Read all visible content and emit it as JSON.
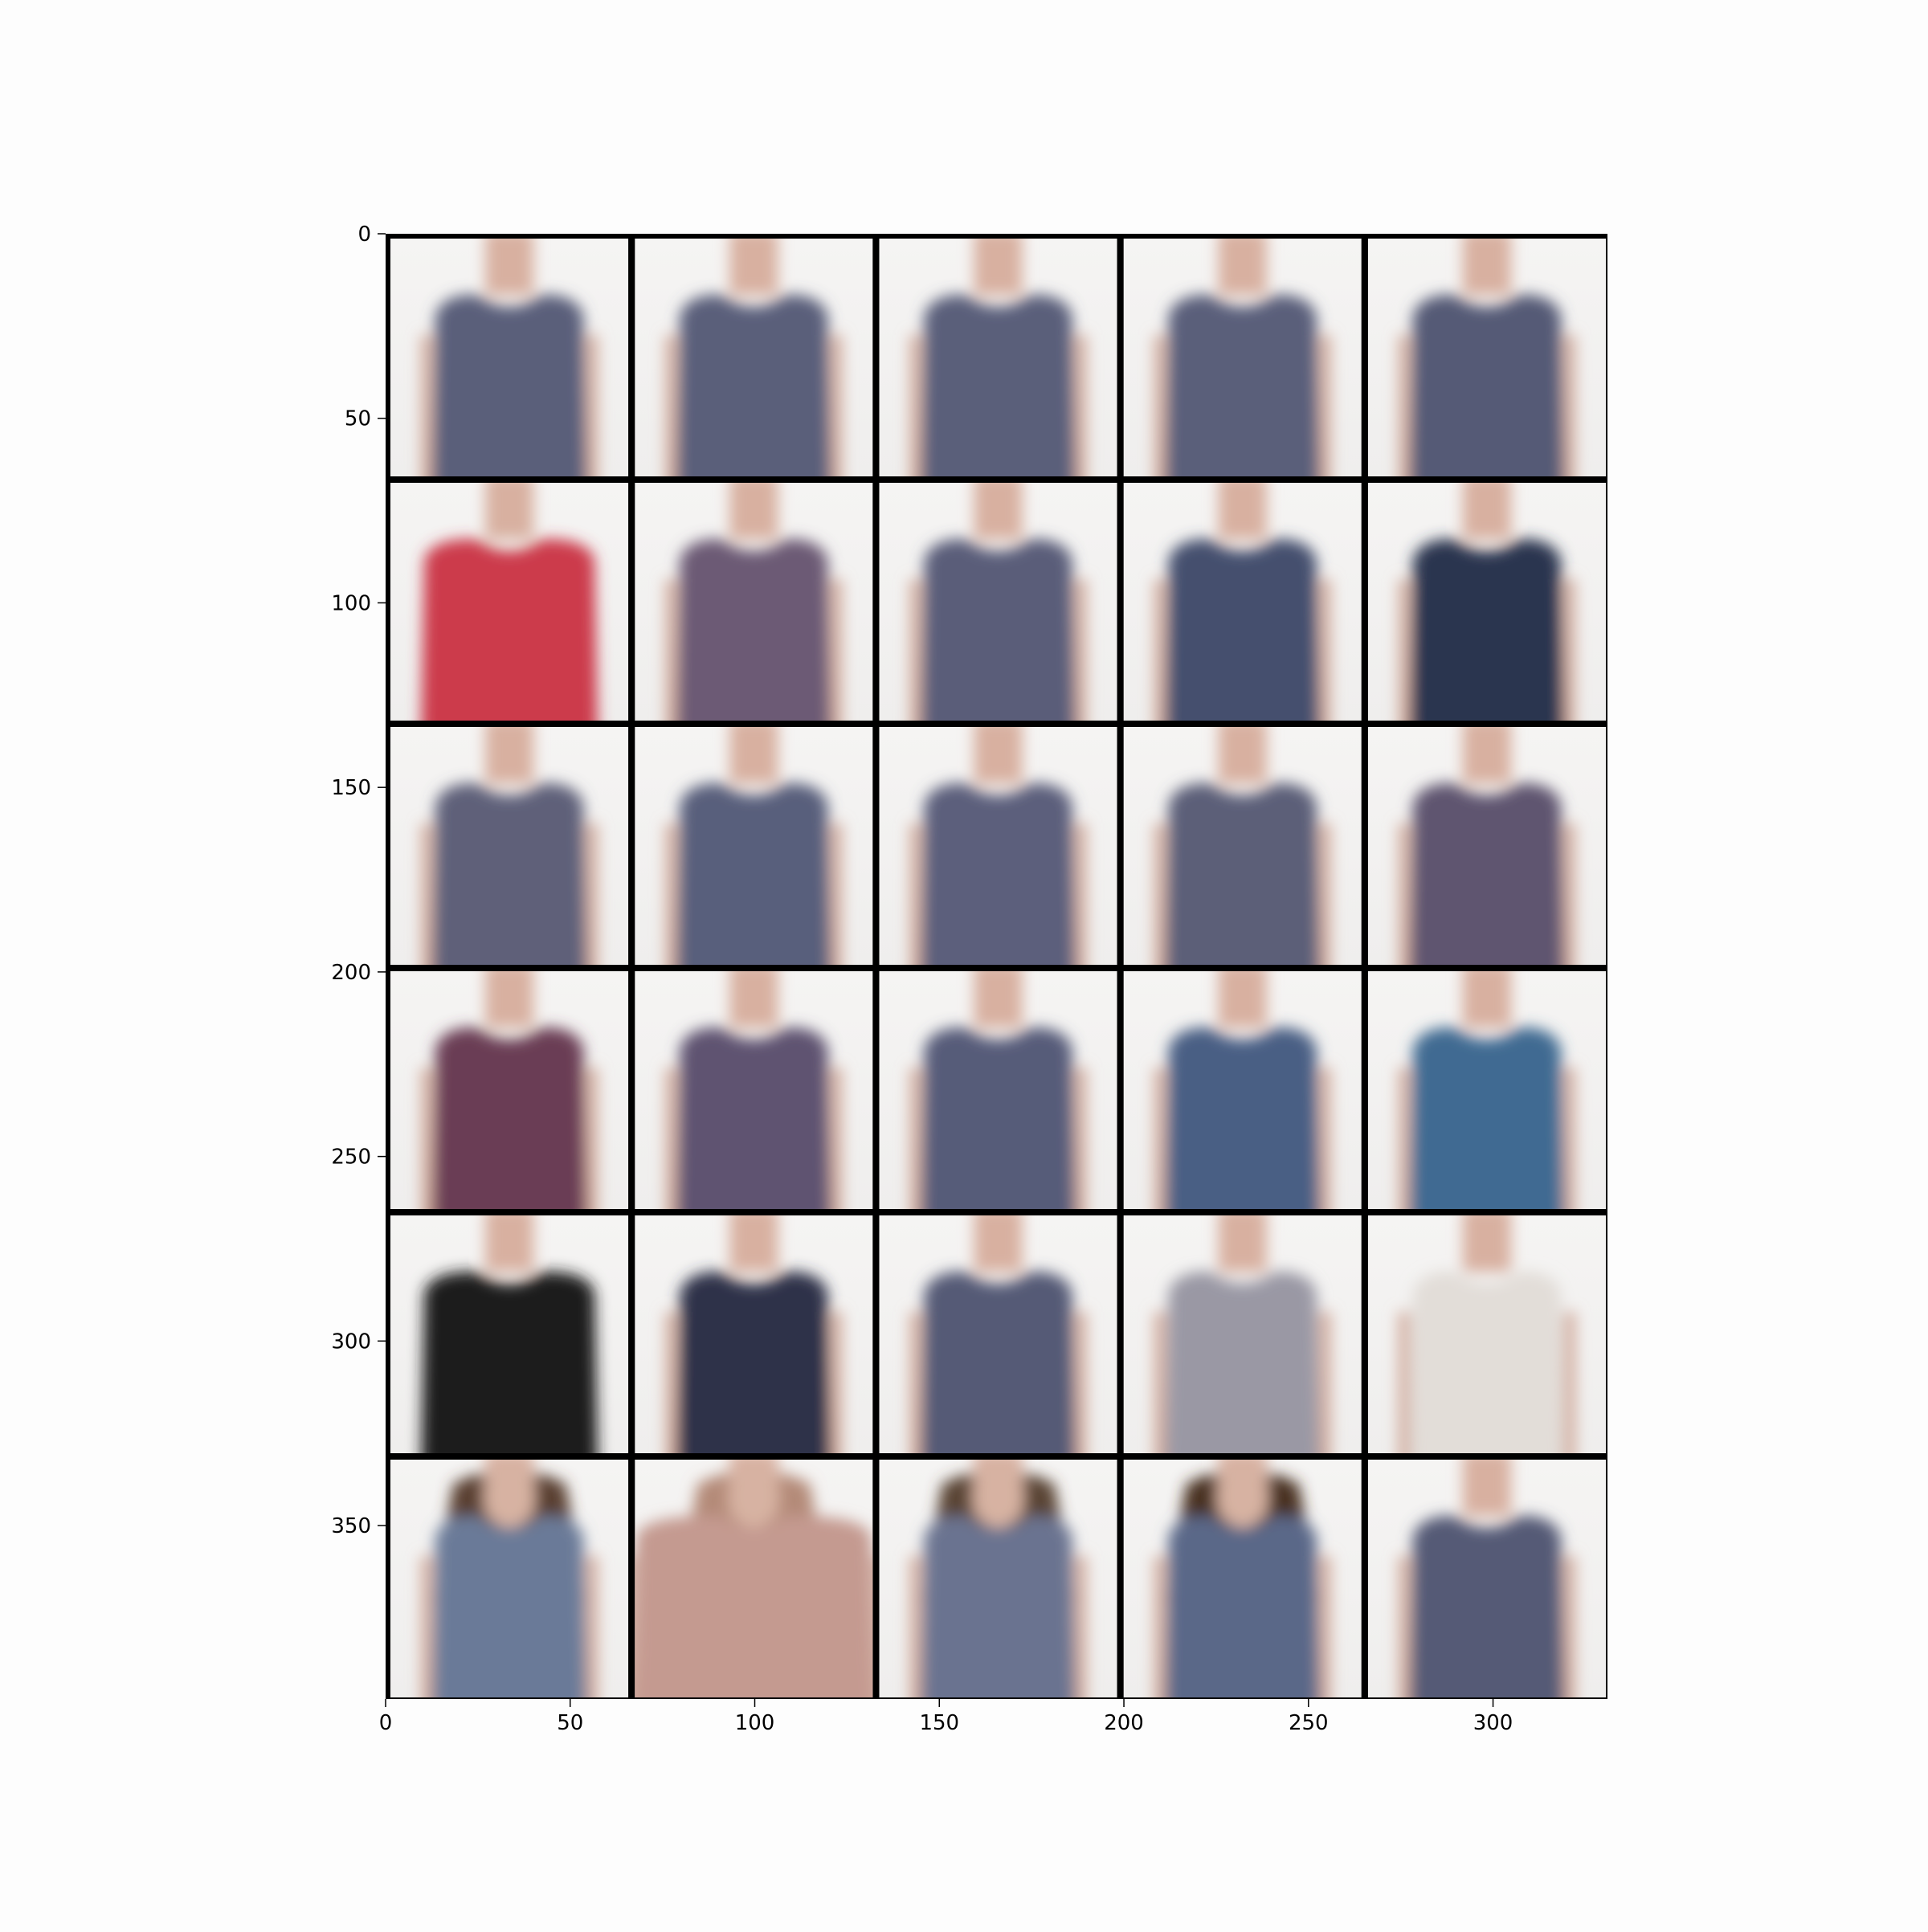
{
  "figure": {
    "background": "#fdfdfd",
    "frame_color": "#000000"
  },
  "image_grid": {
    "rows": 6,
    "cols": 5,
    "cells": [
      [
        {
          "style": "sleeveless",
          "shirt": "#5a5f7a",
          "hair": false
        },
        {
          "style": "sleeveless",
          "shirt": "#5a5f7a",
          "hair": false
        },
        {
          "style": "sleeveless",
          "shirt": "#5a5f7a",
          "hair": false
        },
        {
          "style": "sleeveless",
          "shirt": "#5a5e7a",
          "hair": false
        },
        {
          "style": "sleeveless",
          "shirt": "#555a76",
          "hair": false
        }
      ],
      [
        {
          "style": "sleeved",
          "shirt": "#cc3a4c",
          "hair": false
        },
        {
          "style": "sleeveless",
          "shirt": "#6c5a74",
          "hair": false
        },
        {
          "style": "sleeveless",
          "shirt": "#5a5d79",
          "hair": false
        },
        {
          "style": "sleeveless",
          "shirt": "#44506e",
          "hair": false
        },
        {
          "style": "sleeveless",
          "shirt": "#2c3450",
          "hair": false
        }
      ],
      [
        {
          "style": "sleeveless",
          "shirt": "#5e6079",
          "hair": false
        },
        {
          "style": "sleeveless",
          "shirt": "#595e7b",
          "hair": false
        },
        {
          "style": "sleeveless",
          "shirt": "#5b5f7b",
          "hair": false
        },
        {
          "style": "sleeveless",
          "shirt": "#5c5e78",
          "hair": false
        },
        {
          "style": "sleeveless",
          "shirt": "#5f5470",
          "hair": false
        }
      ],
      [
        {
          "style": "sleeveless",
          "shirt": "#6a3e55",
          "hair": false
        },
        {
          "style": "sleeveless",
          "shirt": "#5f5371",
          "hair": false
        },
        {
          "style": "sleeveless",
          "shirt": "#575c79",
          "hair": false
        },
        {
          "style": "sleeveless",
          "shirt": "#4a5f84",
          "hair": false
        },
        {
          "style": "sleeveless",
          "shirt": "#3f6a92",
          "hair": false
        }
      ],
      [
        {
          "style": "sleeved",
          "shirt": "#1c1a1e",
          "hair": false
        },
        {
          "style": "sleeveless",
          "shirt": "#2f3248",
          "hair": false
        },
        {
          "style": "sleeveless",
          "shirt": "#555a76",
          "hair": false
        },
        {
          "style": "sleeveless",
          "shirt": "#9a98a4",
          "hair": false
        },
        {
          "style": "sleeveless",
          "shirt": "#e2ddd8",
          "hair": false
        }
      ],
      [
        {
          "style": "sleeveless",
          "shirt": "#6a7a98",
          "hair": true,
          "hair_color": "#5a4030"
        },
        {
          "style": "wide",
          "shirt": "#c49a90",
          "hair": true,
          "hair_color": "#b48a78"
        },
        {
          "style": "sleeveless",
          "shirt": "#6a7390",
          "hair": true,
          "hair_color": "#5a4536"
        },
        {
          "style": "sleeveless",
          "shirt": "#5a6888",
          "hair": true,
          "hair_color": "#4a3020"
        },
        {
          "style": "sleeveless",
          "shirt": "#555a76",
          "hair": false
        }
      ]
    ]
  },
  "axes": {
    "x_ticks": [
      "0",
      "50",
      "100",
      "150",
      "200",
      "250",
      "300"
    ],
    "y_ticks": [
      "0",
      "50",
      "100",
      "150",
      "200",
      "250",
      "300",
      "350"
    ],
    "x_range": [
      0,
      331
    ],
    "y_range": [
      0,
      397
    ]
  }
}
